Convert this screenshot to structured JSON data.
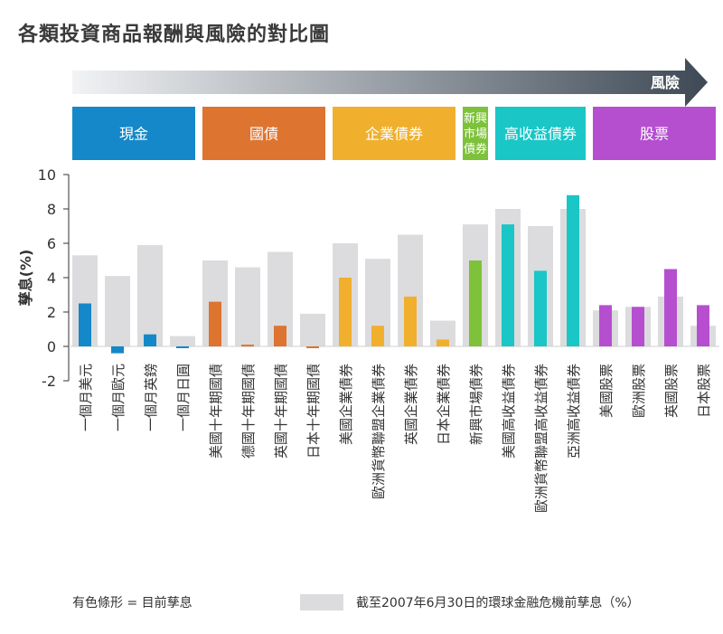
{
  "title": "各類投資商品報酬與風險的對比圖",
  "risk_label": "風險",
  "legend": {
    "current": "有色條形 = 目前孳息",
    "pre_crisis": "截至2007年6月30日的環球金融危機前孳息（%）"
  },
  "colors": {
    "cash": "#1488c8",
    "government": "#dd7430",
    "corporate": "#f0b02d",
    "em": "#7dc23a",
    "high_yield": "#1bc6c6",
    "equity": "#b54fd0",
    "pre_crisis": "#dcdcde",
    "axis": "#333333"
  },
  "chart_data": {
    "type": "bar",
    "title": "各類投資商品報酬與風險的對比圖",
    "ylabel": "孳息(%)",
    "xlabel": "",
    "ylim": [
      -2,
      10
    ],
    "yticks": [
      -2,
      0,
      2,
      4,
      6,
      8,
      10
    ],
    "groups": [
      {
        "label": "現金",
        "color_key": "cash",
        "start": 0,
        "count": 4
      },
      {
        "label": "國債",
        "color_key": "government",
        "start": 4,
        "count": 4
      },
      {
        "label": "企業債券",
        "color_key": "corporate",
        "start": 8,
        "count": 4
      },
      {
        "label": "新興市場債券",
        "color_key": "em",
        "start": 12,
        "count": 1
      },
      {
        "label": "高收益債券",
        "color_key": "high_yield",
        "start": 13,
        "count": 3
      },
      {
        "label": "股票",
        "color_key": "equity",
        "start": 16,
        "count": 4
      }
    ],
    "categories": [
      "一個月美元",
      "一個月歐元",
      "一個月英鎊",
      "一個月日圓",
      "美國十年期國債",
      "德國十年期國債",
      "英國十年期國債",
      "日本十年期國債",
      "美國企業債券",
      "歐洲貨幣聯盟企業債券",
      "英國企業債券",
      "日本企業債券",
      "新興市場債券",
      "美國高收益債券",
      "歐洲貨幣聯盟高收益債券",
      "亞洲高收益債券",
      "美國股票",
      "歐洲股票",
      "英國股票",
      "日本股票"
    ],
    "series": [
      {
        "name": "截至2007年6月30日的環球金融危機前孳息（%）",
        "values": [
          5.3,
          4.1,
          5.9,
          0.6,
          5.0,
          4.6,
          5.5,
          1.9,
          6.0,
          5.1,
          6.5,
          1.5,
          7.1,
          8.0,
          7.0,
          8.0,
          2.1,
          2.3,
          2.9,
          1.2
        ]
      },
      {
        "name": "有色條形 = 目前孳息",
        "values": [
          2.5,
          -0.4,
          0.7,
          -0.1,
          2.6,
          0.1,
          1.2,
          -0.1,
          4.0,
          1.2,
          2.9,
          0.4,
          5.0,
          7.1,
          4.4,
          8.8,
          2.4,
          2.3,
          4.5,
          2.4
        ]
      }
    ]
  }
}
